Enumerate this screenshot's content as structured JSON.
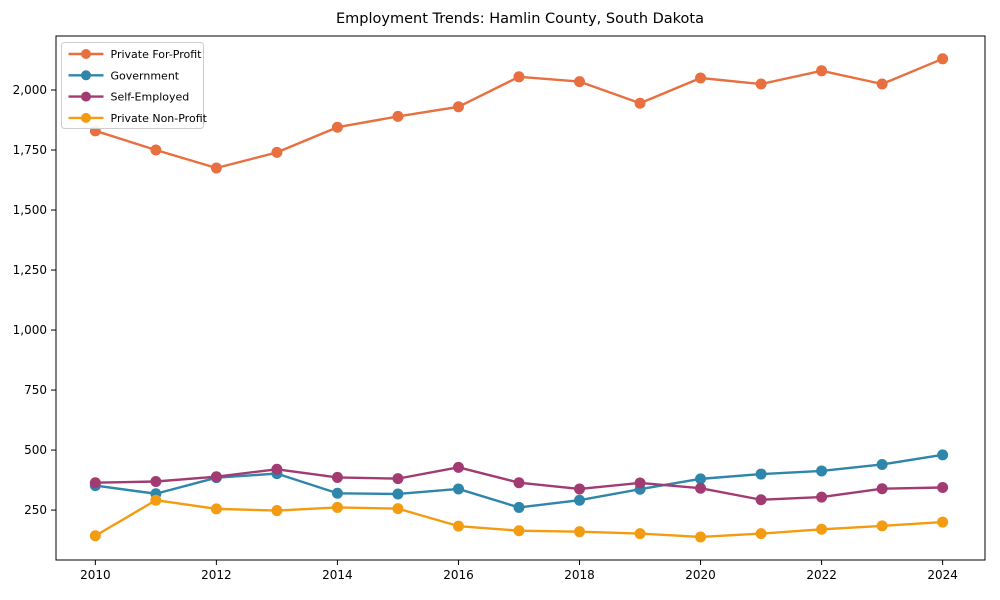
{
  "chart_data": {
    "type": "line",
    "title": "Employment Trends: Hamlin County, South Dakota",
    "xlabel": "",
    "ylabel": "",
    "x": [
      2010,
      2011,
      2012,
      2013,
      2014,
      2015,
      2016,
      2017,
      2018,
      2019,
      2020,
      2021,
      2022,
      2023,
      2024
    ],
    "series": [
      {
        "name": "Private For-Profit",
        "color": "#e86f3f",
        "values": [
          1830,
          1750,
          1675,
          1740,
          1845,
          1890,
          1930,
          2055,
          2035,
          1945,
          2050,
          2025,
          2080,
          2025,
          2130
        ]
      },
      {
        "name": "Government",
        "color": "#2e86ab",
        "values": [
          352,
          318,
          385,
          402,
          320,
          317,
          338,
          261,
          291,
          337,
          380,
          400,
          413,
          440,
          480
        ]
      },
      {
        "name": "Self-Employed",
        "color": "#a23b72",
        "values": [
          364,
          369,
          389,
          420,
          386,
          381,
          428,
          364,
          338,
          363,
          341,
          293,
          304,
          339,
          344
        ]
      },
      {
        "name": "Private Non-Profit",
        "color": "#f39c12",
        "values": [
          143,
          291,
          255,
          248,
          261,
          256,
          183,
          164,
          160,
          152,
          138,
          152,
          170,
          184,
          200
        ]
      }
    ],
    "xticks": [
      2010,
      2012,
      2014,
      2016,
      2018,
      2020,
      2022,
      2024
    ],
    "xtick_labels": [
      "2010",
      "2012",
      "2014",
      "2016",
      "2018",
      "2020",
      "2022",
      "2024"
    ],
    "yticks": [
      250,
      500,
      750,
      1000,
      1250,
      1500,
      1750,
      2000
    ],
    "ytick_labels": [
      "250",
      "500",
      "750",
      "1,000",
      "1,250",
      "1,500",
      "1,750",
      "2,000"
    ],
    "xlim": [
      2009.35,
      2024.7
    ],
    "ylim": [
      42,
      2225
    ],
    "grid": false,
    "legend_position": "upper left",
    "axis_color": "#000000",
    "background_color": "#ffffff"
  }
}
